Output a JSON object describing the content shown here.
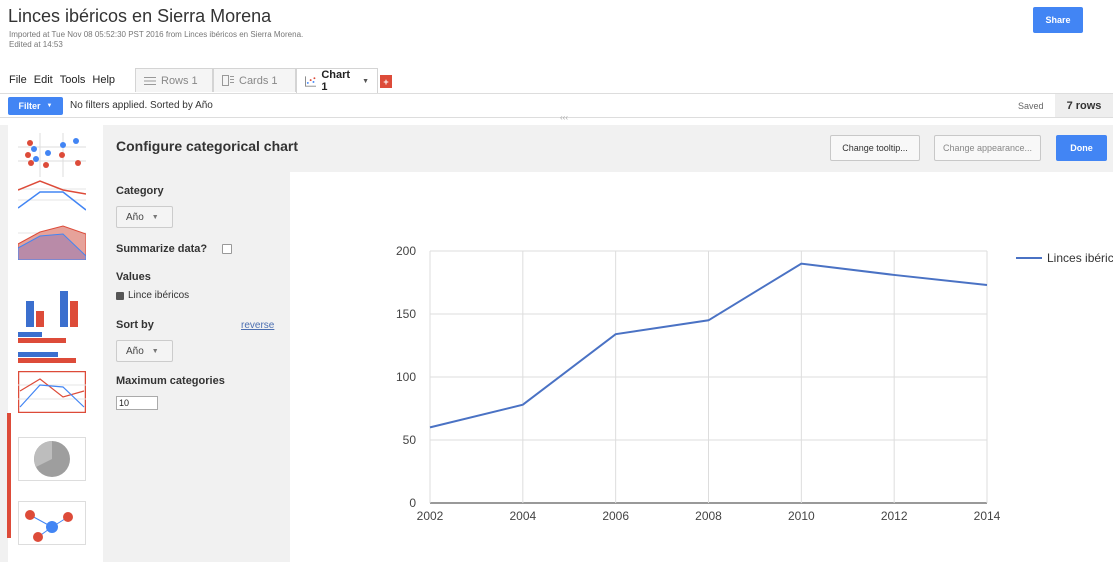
{
  "header": {
    "title": "Linces ibéricos en Sierra Morena",
    "imported": "Imported at Tue Nov 08 05:52:30 PST 2016 from Linces ibéricos en Sierra Morena.",
    "edited": "Edited at 14:53",
    "share_label": "Share"
  },
  "menu": [
    "File",
    "Edit",
    "Tools",
    "Help"
  ],
  "tabs": [
    {
      "label": "Rows 1",
      "icon": "rows-icon"
    },
    {
      "label": "Cards 1",
      "icon": "cards-icon"
    },
    {
      "label": "Chart 1",
      "icon": "chart-icon",
      "active": true
    }
  ],
  "add_tab_label": "+",
  "filterbar": {
    "filter_label": "Filter",
    "status": "No filters applied. Sorted by Año",
    "saved": "Saved",
    "rows": "7 rows"
  },
  "config": {
    "title": "Configure categorical chart",
    "tooltip_btn": "Change tooltip...",
    "appearance_btn": "Change appearance...",
    "done_btn": "Done",
    "category_label": "Category",
    "category_value": "Año",
    "summarize_label": "Summarize data?",
    "values_label": "Values",
    "values_item": "Lince ibéricos",
    "sortby_label": "Sort by",
    "sortby_value": "Año",
    "reverse_label": "reverse",
    "maxcat_label": "Maximum categories",
    "maxcat_value": "10"
  },
  "colors": {
    "accent": "#4285f4",
    "red": "#dd4b39",
    "series": "#4a72c4"
  },
  "chart_data": {
    "type": "line",
    "x": [
      2002,
      2004,
      2006,
      2008,
      2010,
      2012,
      2014
    ],
    "series": [
      {
        "name": "Linces ibéricos",
        "values": [
          60,
          78,
          134,
          145,
          190,
          181,
          173
        ]
      }
    ],
    "xticks": [
      "2002",
      "2004",
      "2006",
      "2008",
      "2010",
      "2012",
      "2014"
    ],
    "yticks": [
      "0",
      "50",
      "100",
      "150",
      "200"
    ],
    "ylim": [
      0,
      200
    ],
    "legend": "right",
    "grid": true
  }
}
